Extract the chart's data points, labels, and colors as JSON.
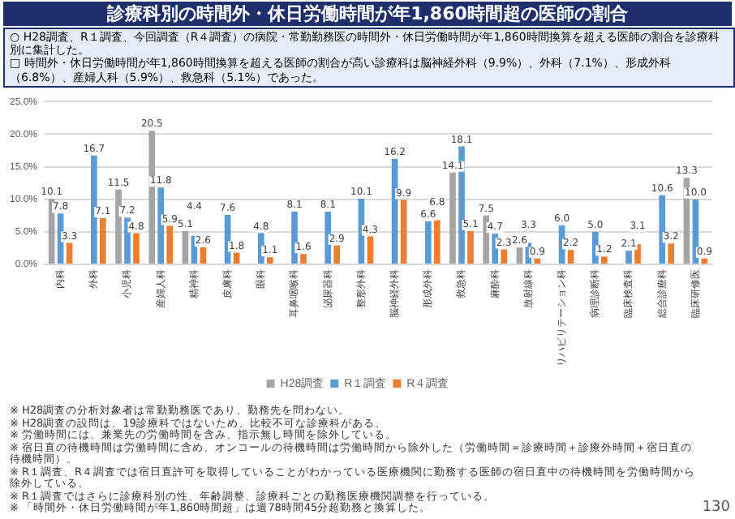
{
  "chart_data": {
    "type": "bar",
    "title": "診療科別の時間外・休日労働時間が年1,860時間超の医師の割合",
    "subtitle": "○ H28調査、R１調査、今回調査（R４調査）の病院・常勤勤務医の時間外・休日労働時間が年1,860時間換算を超える医師の割合を診療科別に集計した。",
    "categories": [
      "内科",
      "外科",
      "小児科",
      "産婦人科",
      "精神科",
      "皮膚科",
      "眼科",
      "耳鼻咽喉科",
      "泌尿器科",
      "整形外科",
      "脳神経外科",
      "形成外科",
      "救急科",
      "麻酔科",
      "放射線科",
      "リハビリテーション科",
      "病理診断科",
      "臨床検査科",
      "総合診療科",
      "臨床研修医"
    ],
    "series": [
      {
        "name": "H28調査",
        "color": "#a5a5a5",
        "values": [
          10.1,
          null,
          11.5,
          20.5,
          5.1,
          null,
          null,
          null,
          null,
          null,
          null,
          null,
          14.1,
          7.5,
          2.6,
          null,
          null,
          null,
          null,
          13.3
        ],
        "value_labels": [
          "10.1",
          null,
          "11.5",
          "20.5",
          "5.1",
          null,
          null,
          null,
          null,
          null,
          null,
          null,
          "14.1",
          "7.5",
          "2.6",
          null,
          null,
          null,
          null,
          "13.3"
        ]
      },
      {
        "name": "R１調査",
        "color": "#5b9bd5",
        "values": [
          7.8,
          16.7,
          7.2,
          11.8,
          4.4,
          7.6,
          4.8,
          8.1,
          8.1,
          10.1,
          16.2,
          6.6,
          18.1,
          4.7,
          3.3,
          6.0,
          5.0,
          2.1,
          10.6,
          10.0
        ],
        "value_labels": [
          "7.8",
          "16.7",
          "7.2",
          "11.8",
          "4.4",
          "7.6",
          "4.8",
          "8.1",
          "8.1",
          "10.1",
          "16.2",
          "6.6",
          "18.1",
          "4.7",
          "3.3",
          "6.0",
          "5.0",
          "2.1",
          "10.6",
          "10.0"
        ]
      },
      {
        "name": "R４調査",
        "color": "#ed7d31",
        "values": [
          3.3,
          7.1,
          4.8,
          5.9,
          2.6,
          1.8,
          1.1,
          1.6,
          2.9,
          4.3,
          9.9,
          6.8,
          5.1,
          2.3,
          0.9,
          2.2,
          1.2,
          3.1,
          3.2,
          0.9
        ],
        "value_labels": [
          "3.3",
          "7.1",
          "4.8",
          "5.9",
          "2.6",
          "1.8",
          "1.1",
          "1.6",
          "2.9",
          "4.3",
          "9.9",
          "6.8",
          "5.1",
          "2.3",
          "0.9",
          "2.2",
          "1.2",
          "3.1",
          "3.2",
          "0.9"
        ]
      }
    ],
    "ylim": [
      0,
      25
    ],
    "yticks": [
      {
        "value": 0,
        "label": "0.0%"
      },
      {
        "value": 5,
        "label": "5.0%"
      },
      {
        "value": 10,
        "label": "10.0%"
      },
      {
        "value": 15,
        "label": "15.0%"
      },
      {
        "value": 20,
        "label": "20.0%"
      },
      {
        "value": 25,
        "label": "25.0%"
      }
    ],
    "grid": "y",
    "legend": "bottom",
    "annotations": [
      "□ 時間外・休日労働時間が年1,860時間換算を超える医師の割合が高い診療科は脳神経外科（9.9%）、外科（7.1%）、形成外科（6.8%）、産婦人科（5.9%）、救急科（5.1%）であった。",
      "※ H28調査の分析対象者は常勤勤務医であり、勤務先を問わない。",
      "※ H28調査の設問は、19診療科ではないため、比較不可な診療科がある。",
      "※ 労働時間には、兼業先の労働時間を含み、指示無し時間を除外している。",
      "※ 宿日直の待機時間は労働時間に含め、オンコールの待機時間は労働時間から除外した（労働時間＝診療時間＋診療外時間＋宿日直の待機時間）。",
      "※ R１調査、R４調査では宿日直許可を取得していることがわかっている医療機関に勤務する医師の宿日直中の待機時間を労働時間から除外している。",
      "※ R１調査ではさらに診療科別の性、年齢調整、診療科ごとの勤務医療機関調整を行っている。",
      "※ 「時間外・休日労働時間が年1,860時間超」は週78時間45分超勤務と換算した。",
      "130"
    ]
  }
}
